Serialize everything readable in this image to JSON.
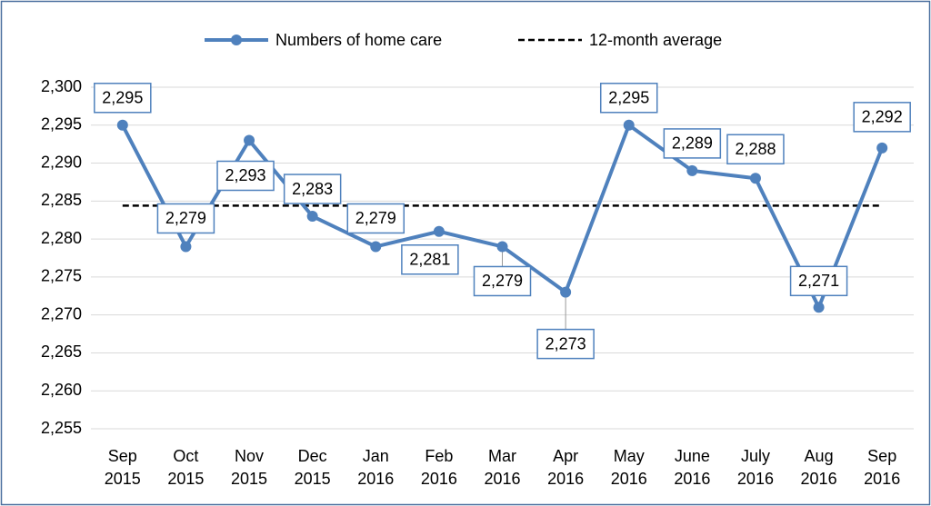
{
  "chart_data": {
    "type": "line",
    "categories": [
      "Sep 2015",
      "Oct 2015",
      "Nov 2015",
      "Dec 2015",
      "Jan 2016",
      "Feb 2016",
      "Mar 2016",
      "Apr 2016",
      "May 2016",
      "June 2016",
      "July 2016",
      "Aug 2016",
      "Sep 2016"
    ],
    "series": [
      {
        "name": "Numbers of home care",
        "color": "#4f81bd",
        "values": [
          2295,
          2279,
          2293,
          2283,
          2279,
          2281,
          2279,
          2273,
          2295,
          2289,
          2288,
          2271,
          2292
        ],
        "value_labels": [
          "2,295",
          "2,279",
          "2,293",
          "2,283",
          "2,279",
          "2,281",
          "2,279",
          "2,273",
          "2,295",
          "2,289",
          "2,288",
          "2,271",
          "2,292"
        ]
      },
      {
        "name": "12-month average",
        "color": "#000000",
        "value": 2284.4,
        "dashed": true
      }
    ],
    "ylim": [
      2255,
      2300
    ],
    "yticks": [
      {
        "value": 2255,
        "label": "2,255"
      },
      {
        "value": 2260,
        "label": "2,260"
      },
      {
        "value": 2265,
        "label": "2,265"
      },
      {
        "value": 2270,
        "label": "2,270"
      },
      {
        "value": 2275,
        "label": "2,275"
      },
      {
        "value": 2280,
        "label": "2,280"
      },
      {
        "value": 2285,
        "label": "2,285"
      },
      {
        "value": 2290,
        "label": "2,290"
      },
      {
        "value": 2295,
        "label": "2,295"
      },
      {
        "value": 2300,
        "label": "2,300"
      }
    ],
    "grid": true,
    "legend": "top"
  }
}
